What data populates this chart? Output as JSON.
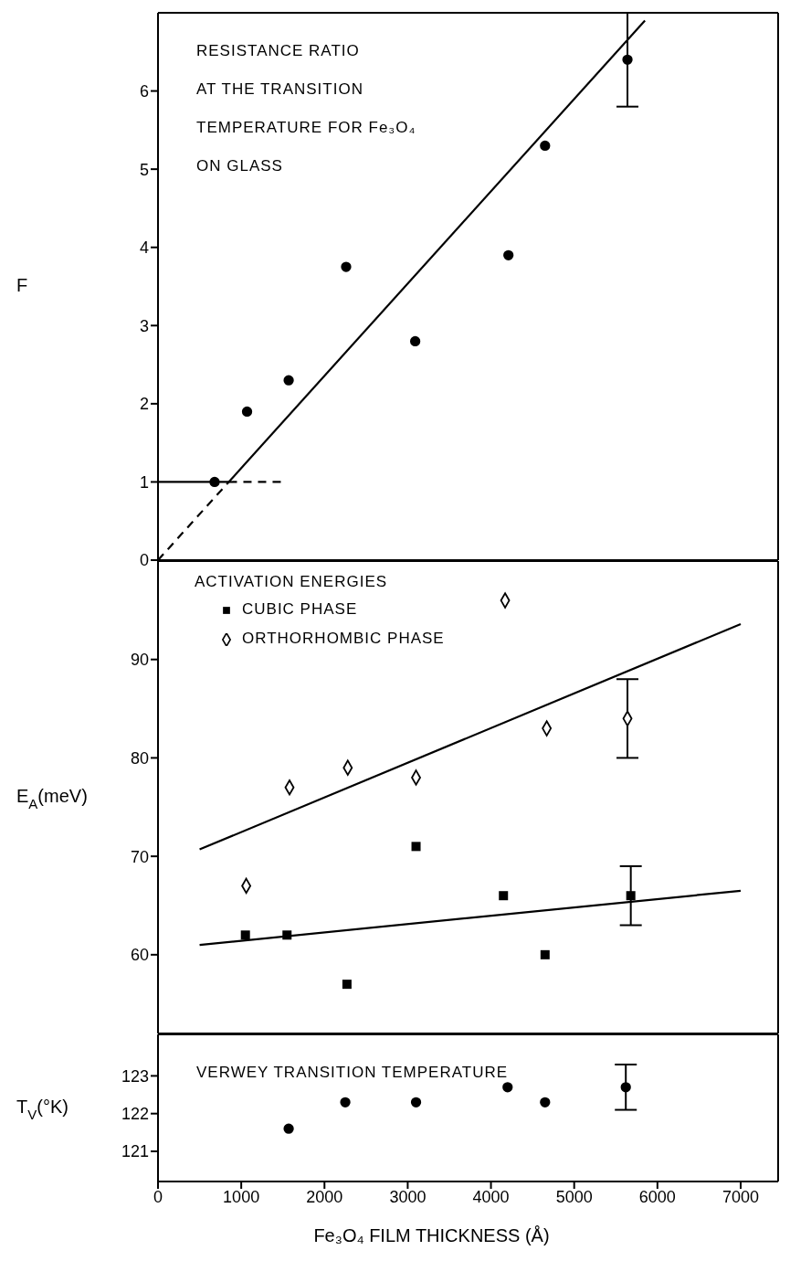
{
  "chart_data": [
    {
      "type": "scatter",
      "ylabel": "F",
      "annotations": [
        "RESISTANCE RATIO\nAT THE TRANSITION\nTEMPERATURE FOR Fe₃O₄\nON GLASS"
      ],
      "xlim": [
        0,
        7450
      ],
      "xticks": [
        0,
        1000,
        2000,
        3000,
        4000,
        5000,
        6000,
        7000
      ],
      "ylim": [
        0,
        7
      ],
      "yticks": [
        0,
        1,
        2,
        3,
        4,
        5,
        6
      ],
      "tick_labels": "y",
      "series": [
        {
          "color": "#000000",
          "marker": "circle",
          "x": [
            680,
            1070,
            1570,
            2260,
            3090,
            4210,
            4650,
            5640
          ],
          "values": [
            1,
            1.9,
            2.3,
            3.75,
            2.8,
            3.9,
            5.3,
            6.4
          ],
          "errors": [
            null,
            null,
            null,
            null,
            null,
            null,
            null,
            0.6
          ]
        },
        {
          "type": "line",
          "color": "#000000",
          "line_style": "dashed",
          "x": [
            0,
            850
          ],
          "values": [
            0,
            1
          ]
        },
        {
          "type": "line",
          "color": "#000000",
          "line_style": "solid",
          "x": [
            850,
            5850
          ],
          "values": [
            1,
            6.9
          ]
        },
        {
          "type": "line",
          "color": "#000000",
          "line_style": "solid",
          "x": [
            0,
            850
          ],
          "values": [
            1,
            1
          ]
        },
        {
          "type": "line",
          "color": "#000000",
          "line_style": "dashed",
          "x": [
            850,
            1480
          ],
          "values": [
            1,
            1
          ]
        }
      ]
    },
    {
      "type": "scatter",
      "ylabel": "E$_{A}$(meV)",
      "legend_title": "ACTIVATION ENERGIES",
      "legend": "top left",
      "xlim": [
        0,
        7450
      ],
      "xticks": [
        0,
        1000,
        2000,
        3000,
        4000,
        5000,
        6000,
        7000
      ],
      "ylim": [
        52,
        100
      ],
      "yticks": [
        60,
        70,
        80,
        90
      ],
      "tick_labels": "y",
      "series": [
        {
          "name": "CUBIC PHASE",
          "color": "#000000",
          "marker": "square",
          "x": [
            1050,
            1550,
            2270,
            3100,
            4150,
            4650,
            5680
          ],
          "values": [
            62,
            62,
            57,
            71,
            66,
            60,
            66
          ],
          "errors": [
            null,
            null,
            null,
            null,
            null,
            null,
            3
          ]
        },
        {
          "name": "ORTHORHOMBIC PHASE",
          "color": "#000000",
          "marker": "diamond",
          "x": [
            1060,
            1580,
            2280,
            3100,
            4170,
            4670,
            5640
          ],
          "values": [
            67,
            77,
            79,
            78,
            96,
            83,
            84
          ],
          "errors": [
            null,
            null,
            null,
            null,
            null,
            null,
            4
          ]
        },
        {
          "type": "line",
          "color": "#000000",
          "line_style": "solid",
          "x": [
            500,
            7000
          ],
          "values": [
            70.7,
            93.6
          ]
        },
        {
          "type": "line",
          "color": "#000000",
          "line_style": "solid",
          "x": [
            500,
            7000
          ],
          "values": [
            61,
            66.5
          ]
        }
      ]
    },
    {
      "type": "scatter",
      "ylabel": "T$_{V}$(°K)",
      "xlabel": "Fe₃O₄ FILM THICKNESS (Å)",
      "annotations": [
        "VERWEY TRANSITION TEMPERATURE"
      ],
      "xlim": [
        0,
        7450
      ],
      "xticks": [
        0,
        1000,
        2000,
        3000,
        4000,
        5000,
        6000,
        7000
      ],
      "ylim": [
        120.2,
        124.1
      ],
      "yticks": [
        121,
        122,
        123
      ],
      "series": [
        {
          "color": "#000000",
          "marker": "circle",
          "x": [
            1570,
            2250,
            3100,
            4200,
            4650,
            5620
          ],
          "values": [
            121.6,
            122.3,
            122.3,
            122.7,
            122.3,
            122.7
          ],
          "errors": [
            null,
            null,
            null,
            null,
            null,
            0.6
          ]
        }
      ]
    }
  ]
}
